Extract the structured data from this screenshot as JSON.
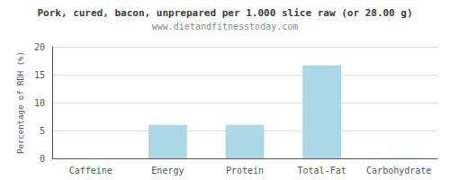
{
  "chart_data": {
    "type": "bar",
    "title": "Pork, cured, bacon, unprepared per 1.000 slice raw (or 28.00 g)",
    "subtitle": "www.dietandfitnesstoday.com",
    "categories": [
      "Caffeine",
      "Energy",
      "Protein",
      "Total-Fat",
      "Carbohydrate"
    ],
    "values": [
      0,
      6.0,
      6.0,
      16.7,
      0.1
    ],
    "color": "#ADD8E6",
    "ylabel": "Percentage of RDH (%)",
    "ylim": [
      0,
      20
    ],
    "yticks": [
      0,
      5,
      10,
      15,
      20
    ],
    "grid": true
  }
}
